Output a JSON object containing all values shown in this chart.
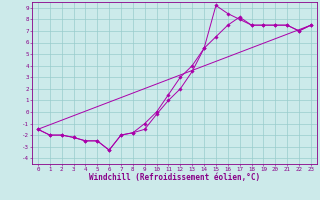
{
  "xlabel": "Windchill (Refroidissement éolien,°C)",
  "bg_color": "#cceaea",
  "line_color": "#aa00aa",
  "grid_color": "#99cccc",
  "xlim": [
    -0.5,
    23.5
  ],
  "ylim": [
    -4.5,
    9.5
  ],
  "xticks": [
    0,
    1,
    2,
    3,
    4,
    5,
    6,
    7,
    8,
    9,
    10,
    11,
    12,
    13,
    14,
    15,
    16,
    17,
    18,
    19,
    20,
    21,
    22,
    23
  ],
  "yticks": [
    -4,
    -3,
    -2,
    -1,
    0,
    1,
    2,
    3,
    4,
    5,
    6,
    7,
    8,
    9
  ],
  "line1_x": [
    0,
    1,
    2,
    3,
    4,
    5,
    6,
    7,
    8,
    9,
    10,
    11,
    12,
    13,
    14,
    15,
    16,
    17,
    18,
    19,
    20,
    21,
    22,
    23
  ],
  "line1_y": [
    -1.5,
    -2.0,
    -2.0,
    -2.2,
    -2.5,
    -2.5,
    -3.3,
    -2.0,
    -1.8,
    -1.5,
    -0.2,
    1.0,
    2.0,
    3.5,
    5.5,
    6.5,
    7.5,
    8.2,
    7.5,
    7.5,
    7.5,
    7.5,
    7.0,
    7.5
  ],
  "line2_x": [
    0,
    1,
    2,
    3,
    4,
    5,
    6,
    7,
    8,
    9,
    10,
    11,
    12,
    13,
    14,
    15,
    16,
    17,
    18,
    19,
    20,
    21,
    22,
    23
  ],
  "line2_y": [
    -1.5,
    -2.0,
    -2.0,
    -2.2,
    -2.5,
    -2.5,
    -3.3,
    -2.0,
    -1.8,
    -1.0,
    0.0,
    1.5,
    3.0,
    4.0,
    5.5,
    9.2,
    8.5,
    8.0,
    7.5,
    7.5,
    7.5,
    7.5,
    7.0,
    7.5
  ],
  "line3_x": [
    0,
    23
  ],
  "line3_y": [
    -1.5,
    7.5
  ],
  "figsize": [
    3.2,
    2.0
  ],
  "dpi": 100,
  "tick_fontsize": 4.2,
  "label_fontsize": 5.5
}
